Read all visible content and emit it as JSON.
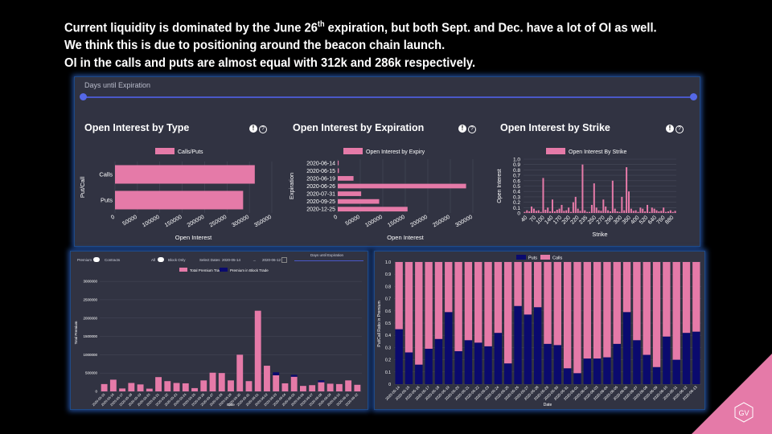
{
  "headline": {
    "line1_pre": "Current liquidity is dominated by the June 26",
    "line1_sup": "th",
    "line1_post": " expiration, but both Sept. and Dec. have a lot of OI as well.",
    "line2": "We think this is due to positioning around the beacon chain launch.",
    "line3": "OI in the calls and puts are almost equal with 312k and 286k respectively."
  },
  "top_panel": {
    "slider_title": "Days until Expiration",
    "chart1_title": "Open Interest by Type",
    "chart2_title": "Open Interest by Expiration",
    "chart3_title": "Open Interest by Strike"
  },
  "bl_panel": {
    "premium_label": "Premium",
    "contracts_label": "Contracts",
    "all_label": "All",
    "block_only_label": "Block Only",
    "select_dates_label": "Select Dates",
    "date_from": "2020-05-14",
    "date_sep": "→",
    "date_to": "2020-06-12",
    "slider_title": "Days until Expiration"
  },
  "colors": {
    "pink": "#e57aa8",
    "navy": "#0a0a6e",
    "panel_bg": "#313342",
    "accent_blue": "#4a58c8"
  },
  "icons": [
    "info-exclamation-icon",
    "help-question-icon",
    "gv-logo-icon"
  ],
  "chart_data": [
    {
      "type": "bar",
      "orientation": "horizontal",
      "title": "Open Interest by Type",
      "legend": "Calls/Puts",
      "categories": [
        "Calls",
        "Puts"
      ],
      "values": [
        312000,
        286000
      ],
      "xlabel": "Open Interest",
      "ylabel": "Put/Call",
      "xlim": [
        0,
        350000
      ],
      "xticks": [
        0,
        50000,
        100000,
        150000,
        200000,
        250000,
        300000,
        350000
      ]
    },
    {
      "type": "bar",
      "orientation": "horizontal",
      "title": "Open Interest by Expiration",
      "legend": "Open Interest by Expiry",
      "categories": [
        "2020-06-14",
        "2020-06-15",
        "2020-06-19",
        "2020-06-26",
        "2020-07-31",
        "2020-09-25",
        "2020-12-25"
      ],
      "values": [
        2000,
        2500,
        35000,
        285000,
        52000,
        92000,
        155000
      ],
      "xlabel": "Open Interest",
      "ylabel": "Expiration",
      "xlim": [
        0,
        300000
      ],
      "xticks": [
        0,
        50000,
        100000,
        150000,
        200000,
        250000,
        300000
      ]
    },
    {
      "type": "bar",
      "title": "Open Interest by Strike",
      "legend": "Open Interest By Strike",
      "tick_labels": [
        "40",
        "70",
        "100",
        "140",
        "170",
        "200",
        "220",
        "235",
        "250",
        "270",
        "290",
        "300",
        "350",
        "400",
        "520",
        "640",
        "760",
        "880"
      ],
      "values": [
        0.02,
        0.05,
        0.03,
        0.12,
        0.08,
        0.04,
        0.05,
        0.02,
        0.65,
        0.06,
        0.1,
        0.03,
        0.25,
        0.03,
        0.06,
        0.08,
        0.15,
        0.04,
        0.05,
        0.1,
        0.02,
        0.2,
        0.3,
        0.08,
        0.04,
        0.9,
        0.05,
        0.02,
        0.02,
        0.15,
        0.55,
        0.1,
        0.05,
        0.04,
        0.25,
        0.12,
        0.05,
        0.03,
        0.6,
        0.08,
        0.03,
        0.02,
        0.3,
        0.05,
        0.85,
        0.4,
        0.08,
        0.04,
        0.05,
        0.02,
        0.1,
        0.08,
        0.03,
        0.15,
        0.02,
        0.1,
        0.08,
        0.05,
        0.03,
        0.04,
        0.1,
        0.02,
        0.03,
        0.05,
        0.02,
        0.04
      ],
      "xlabel": "Strike",
      "ylabel": "Open Interest",
      "ylim": [
        0,
        1.0
      ],
      "yticks": [
        "0",
        "0.1",
        "0.2",
        "0.3",
        "0.4",
        "0.5",
        "0.6",
        "0.7",
        "0.8",
        "0.9",
        "1.0"
      ]
    },
    {
      "type": "bar",
      "stacked": true,
      "series": [
        {
          "name": "Total Premium Traded",
          "values": [
            200000,
            320000,
            80000,
            230000,
            190000,
            75000,
            390000,
            280000,
            230000,
            220000,
            90000,
            300000,
            510000,
            500000,
            300000,
            1000000,
            280000,
            2200000,
            700000,
            440000,
            220000,
            400000,
            150000,
            170000,
            250000,
            210000,
            200000,
            300000,
            180000
          ]
        },
        {
          "name": "Premium in Block Trade",
          "values": [
            0,
            0,
            0,
            0,
            0,
            0,
            0,
            0,
            0,
            0,
            0,
            0,
            0,
            0,
            0,
            0,
            0,
            0,
            0,
            80000,
            0,
            50000,
            0,
            0,
            50000,
            0,
            0,
            0,
            0
          ]
        }
      ],
      "xlabel": "Date",
      "ylabel": "Total Premium",
      "ylim": [
        0,
        3200000
      ],
      "yticks": [
        "0",
        "500000",
        "1000000",
        "1500000",
        "2000000",
        "2500000",
        "3000000"
      ],
      "tick_labels": [
        "2020-05-15",
        "2020-05-16",
        "2020-05-17",
        "2020-05-18",
        "2020-05-19",
        "2020-05-20",
        "2020-05-21",
        "2020-05-22",
        "2020-05-23",
        "2020-05-24",
        "2020-05-25",
        "2020-05-26",
        "2020-05-27",
        "2020-05-28",
        "2020-05-29",
        "2020-05-30",
        "2020-05-31",
        "2020-06-01",
        "2020-06-02",
        "2020-06-03",
        "2020-06-04",
        "2020-06-05",
        "2020-06-06",
        "2020-06-07",
        "2020-06-08",
        "2020-06-09",
        "2020-06-10",
        "2020-06-11",
        "2020-06-12"
      ]
    },
    {
      "type": "bar",
      "stacked": true,
      "series": [
        {
          "name": "Puts",
          "values": [
            0.45,
            0.26,
            0.16,
            0.29,
            0.37,
            0.59,
            0.27,
            0.36,
            0.34,
            0.31,
            0.42,
            0.17,
            0.64,
            0.57,
            0.63,
            0.33,
            0.32,
            0.13,
            0.09,
            0.21,
            0.21,
            0.22,
            0.33,
            0.59,
            0.36,
            0.24,
            0.14,
            0.39,
            0.2,
            0.42,
            0.43
          ]
        },
        {
          "name": "Calls",
          "values": [
            0.55,
            0.74,
            0.84,
            0.71,
            0.63,
            0.41,
            0.73,
            0.64,
            0.66,
            0.69,
            0.58,
            0.83,
            0.36,
            0.43,
            0.37,
            0.67,
            0.68,
            0.87,
            0.91,
            0.79,
            0.79,
            0.78,
            0.67,
            0.41,
            0.64,
            0.76,
            0.86,
            0.61,
            0.8,
            0.58,
            0.57
          ]
        }
      ],
      "xlabel": "Date",
      "ylabel": "Put/Call Ratio in Premium",
      "ylim": [
        0,
        1.0
      ],
      "yticks": [
        "0",
        "0.1",
        "0.2",
        "0.3",
        "0.4",
        "0.5",
        "0.6",
        "0.7",
        "0.8",
        "0.9",
        "1.0"
      ],
      "tick_labels": [
        "2020-05-14",
        "2020-05-15",
        "2020-05-16",
        "2020-05-17",
        "2020-05-18",
        "2020-05-19",
        "2020-05-20",
        "2020-05-21",
        "2020-05-22",
        "2020-05-23",
        "2020-05-24",
        "2020-05-25",
        "2020-05-26",
        "2020-05-27",
        "2020-05-28",
        "2020-05-29",
        "2020-05-30",
        "2020-05-31",
        "2020-06-01",
        "2020-06-02",
        "2020-06-03",
        "2020-06-04",
        "2020-06-05",
        "2020-06-06",
        "2020-06-07",
        "2020-06-08",
        "2020-06-09",
        "2020-06-10",
        "2020-06-11",
        "2020-06-12",
        "2020-06-13"
      ]
    }
  ]
}
